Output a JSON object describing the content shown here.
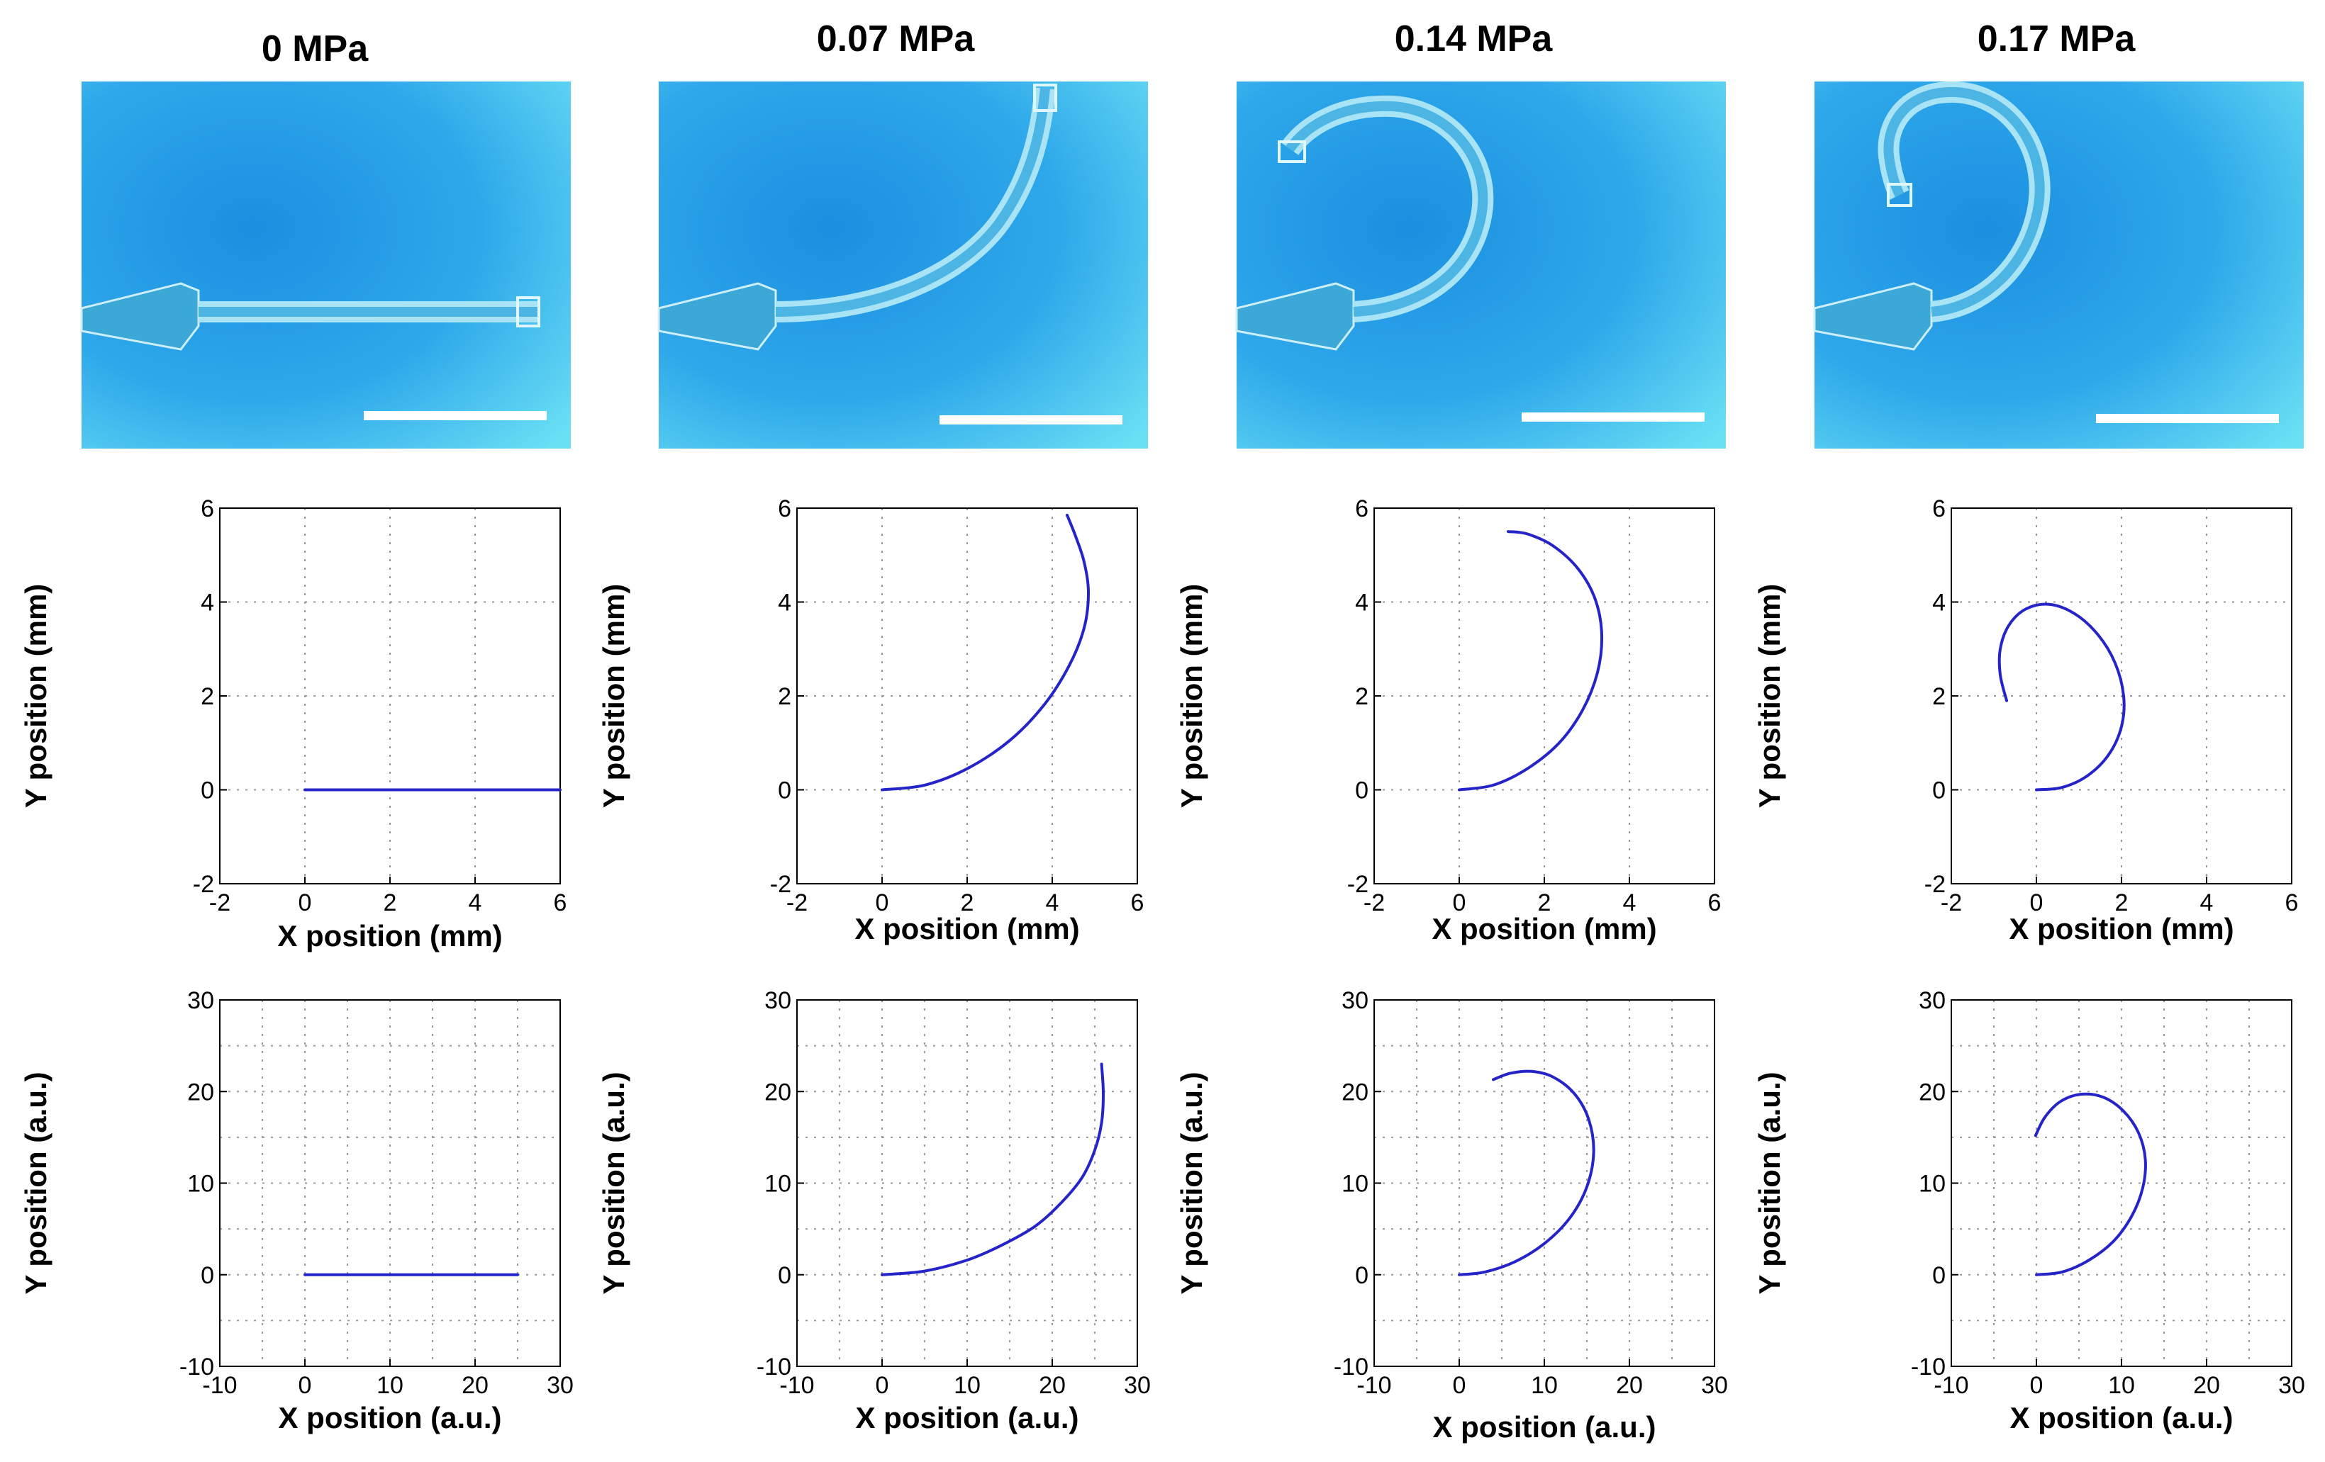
{
  "columns": [
    {
      "pressure": "0 MPa"
    },
    {
      "pressure": "0.07 MPa"
    },
    {
      "pressure": "0.14 MPa"
    },
    {
      "pressure": "0.17 MPa"
    }
  ],
  "colors": {
    "curve": "#2424c8",
    "photo_bg": "#2aa3e6",
    "photo_bg_light": "#5fd8f2",
    "scale_bar": "#ffffff",
    "grid": "#9a9a9a",
    "axis": "#000000"
  },
  "chart_data": [
    {
      "type": "line",
      "row": "mm",
      "column": 0,
      "xlabel": "X position (mm)",
      "ylabel": "Y position (mm)",
      "xlim": [
        -2,
        6
      ],
      "ylim": [
        -2,
        6
      ],
      "xticks": [
        -2,
        0,
        2,
        4,
        6
      ],
      "yticks": [
        -2,
        0,
        2,
        4,
        6
      ],
      "grid": true,
      "series": [
        {
          "x": [
            0,
            1,
            2,
            3,
            4,
            5,
            6
          ],
          "y": [
            0,
            0,
            0,
            0,
            0,
            0,
            0
          ]
        }
      ]
    },
    {
      "type": "line",
      "row": "mm",
      "column": 1,
      "xlabel": "X position (mm)",
      "ylabel": "Y position (mm)",
      "xlim": [
        -2,
        6
      ],
      "ylim": [
        -2,
        6
      ],
      "xticks": [
        -2,
        0,
        2,
        4,
        6
      ],
      "yticks": [
        -2,
        0,
        2,
        4,
        6
      ],
      "grid": true,
      "series": [
        {
          "x": [
            0,
            1.0,
            2.0,
            3.0,
            3.8,
            4.4,
            4.75,
            4.85,
            4.75,
            4.55,
            4.35
          ],
          "y": [
            0,
            0.1,
            0.45,
            1.05,
            1.8,
            2.65,
            3.45,
            4.2,
            4.85,
            5.4,
            5.85
          ]
        }
      ]
    },
    {
      "type": "line",
      "row": "mm",
      "column": 2,
      "xlabel": "X position (mm)",
      "ylabel": "Y position (mm)",
      "xlim": [
        -2,
        6
      ],
      "ylim": [
        -2,
        6
      ],
      "xticks": [
        -2,
        0,
        2,
        4,
        6
      ],
      "yticks": [
        -2,
        0,
        2,
        4,
        6
      ],
      "grid": true,
      "series": [
        {
          "x": [
            0,
            0.8,
            1.6,
            2.35,
            2.9,
            3.25,
            3.35,
            3.2,
            2.8,
            2.2,
            1.6,
            1.15
          ],
          "y": [
            0,
            0.1,
            0.45,
            1.0,
            1.7,
            2.5,
            3.3,
            4.05,
            4.7,
            5.2,
            5.45,
            5.5
          ]
        }
      ]
    },
    {
      "type": "line",
      "row": "mm",
      "column": 3,
      "xlabel": "X position (mm)",
      "ylabel": "Y position (mm)",
      "xlim": [
        -2,
        6
      ],
      "ylim": [
        -2,
        6
      ],
      "xticks": [
        -2,
        0,
        2,
        4,
        6
      ],
      "yticks": [
        -2,
        0,
        2,
        4,
        6
      ],
      "grid": true,
      "series": [
        {
          "x": [
            0,
            0.6,
            1.2,
            1.7,
            2.0,
            2.05,
            1.85,
            1.45,
            0.9,
            0.3,
            -0.25,
            -0.65,
            -0.85,
            -0.85,
            -0.7
          ],
          "y": [
            0,
            0.05,
            0.3,
            0.75,
            1.35,
            2.0,
            2.7,
            3.3,
            3.75,
            3.95,
            3.85,
            3.5,
            3.0,
            2.45,
            1.9
          ]
        }
      ]
    },
    {
      "type": "line",
      "row": "au",
      "column": 0,
      "xlabel": "X position (a.u.)",
      "ylabel": "Y position (a.u.)",
      "xlim": [
        -10,
        30
      ],
      "ylim": [
        -10,
        30
      ],
      "xticks": [
        -10,
        0,
        10,
        20,
        30
      ],
      "yticks": [
        -10,
        0,
        10,
        20,
        30
      ],
      "grid": true,
      "series": [
        {
          "x": [
            0,
            5,
            10,
            15,
            20,
            25
          ],
          "y": [
            0,
            0,
            0,
            0,
            0,
            0
          ]
        }
      ]
    },
    {
      "type": "line",
      "row": "au",
      "column": 1,
      "xlabel": "X position (a.u.)",
      "ylabel": "Y position (a.u.)",
      "xlim": [
        -10,
        30
      ],
      "ylim": [
        -10,
        30
      ],
      "xticks": [
        -10,
        0,
        10,
        20,
        30
      ],
      "yticks": [
        -10,
        0,
        10,
        20,
        30
      ],
      "grid": true,
      "series": [
        {
          "x": [
            0,
            5,
            10,
            14,
            18,
            21,
            23.5,
            25,
            25.8,
            26.0,
            25.8
          ],
          "y": [
            0,
            0.4,
            1.6,
            3.2,
            5.3,
            7.8,
            10.6,
            13.6,
            16.6,
            19.8,
            23.0
          ]
        }
      ]
    },
    {
      "type": "line",
      "row": "au",
      "column": 2,
      "xlabel": "X position (a.u.)",
      "ylabel": "Y position (a.u.)",
      "xlim": [
        -10,
        30
      ],
      "ylim": [
        -10,
        30
      ],
      "xticks": [
        -10,
        0,
        10,
        20,
        30
      ],
      "yticks": [
        -10,
        0,
        10,
        20,
        30
      ],
      "grid": true,
      "series": [
        {
          "x": [
            0,
            3,
            6.5,
            10,
            13,
            15,
            15.8,
            15.2,
            13.5,
            11,
            8.5,
            6,
            4
          ],
          "y": [
            0,
            0.3,
            1.4,
            3.4,
            6.2,
            9.6,
            13.4,
            17.0,
            19.8,
            21.6,
            22.2,
            22.0,
            21.3
          ]
        }
      ]
    },
    {
      "type": "line",
      "row": "au",
      "column": 3,
      "xlabel": "X position (a.u.)",
      "ylabel": "Y position (a.u.)",
      "xlim": [
        -10,
        30
      ],
      "ylim": [
        -10,
        30
      ],
      "xticks": [
        -10,
        0,
        10,
        20,
        30
      ],
      "yticks": [
        -10,
        0,
        10,
        20,
        30
      ],
      "grid": true,
      "series": [
        {
          "x": [
            0,
            3,
            6,
            9,
            11.2,
            12.5,
            12.8,
            12.0,
            10.2,
            7.8,
            5.2,
            2.8,
            1.0,
            -0.1
          ],
          "y": [
            0,
            0.3,
            1.5,
            3.6,
            6.4,
            9.5,
            12.6,
            15.5,
            17.9,
            19.4,
            19.7,
            18.9,
            17.2,
            15.2
          ]
        }
      ]
    }
  ]
}
